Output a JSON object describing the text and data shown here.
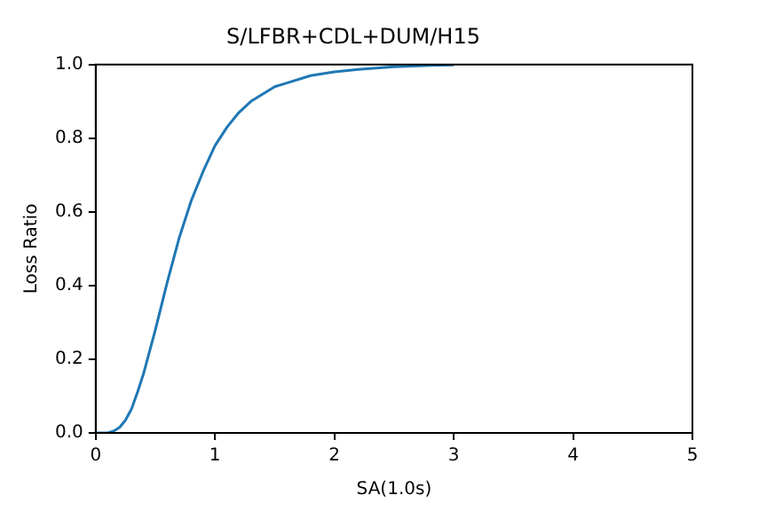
{
  "chart_data": {
    "type": "line",
    "title": "S/LFBR+CDL+DUM/H15",
    "xlabel": "SA(1.0s)",
    "ylabel": "Loss Ratio",
    "x": [
      0,
      0.1,
      0.15,
      0.2,
      0.25,
      0.3,
      0.35,
      0.4,
      0.45,
      0.5,
      0.6,
      0.7,
      0.8,
      0.9,
      1.0,
      1.1,
      1.2,
      1.3,
      1.4,
      1.5,
      1.6,
      1.8,
      2.0,
      2.2,
      2.5,
      2.8,
      3.0
    ],
    "series": [
      {
        "color": "#1f77b4",
        "values": [
          0,
          0.0,
          0.005,
          0.015,
          0.035,
          0.065,
          0.11,
          0.16,
          0.22,
          0.28,
          0.41,
          0.53,
          0.63,
          0.71,
          0.78,
          0.83,
          0.87,
          0.9,
          0.92,
          0.94,
          0.95,
          0.97,
          0.98,
          0.987,
          0.994,
          0.998,
          0.999
        ]
      }
    ],
    "xlim": [
      0,
      5
    ],
    "xticks": [
      0,
      1,
      2,
      3,
      4,
      5
    ],
    "ylim": [
      0,
      1
    ],
    "yticks": [
      {
        "value": 0,
        "label": "0.0"
      },
      0.2,
      0.4,
      0.6,
      0.8,
      {
        "value": 1,
        "label": "1.0"
      }
    ],
    "grid": false,
    "legend": false,
    "marker": "none",
    "line_style": "solid"
  }
}
